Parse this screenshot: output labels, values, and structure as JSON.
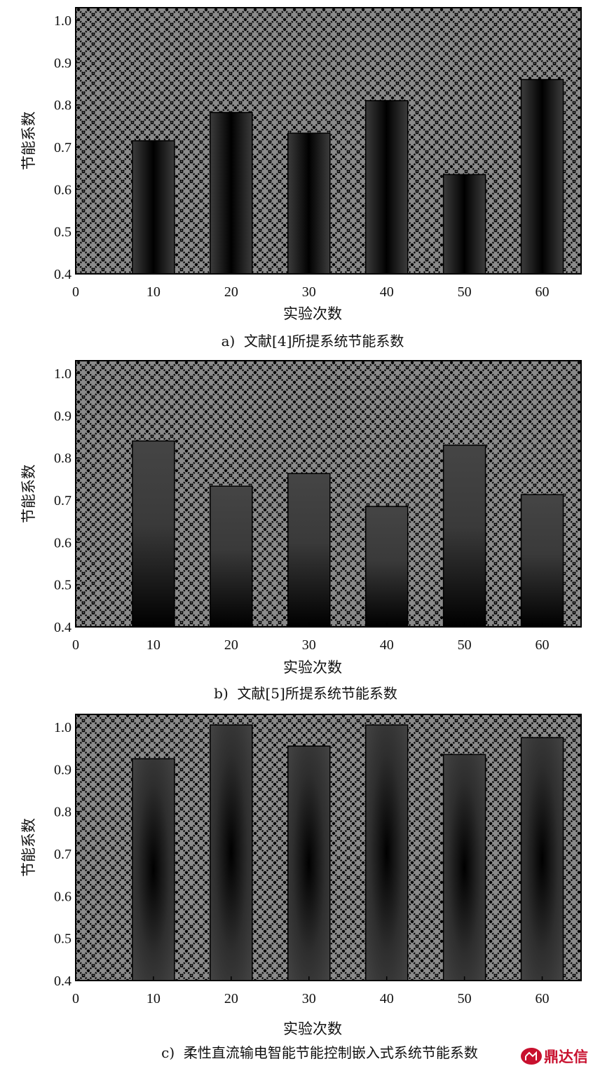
{
  "chart_data": [
    {
      "type": "bar",
      "x": [
        10,
        20,
        30,
        40,
        50,
        60
      ],
      "values": [
        0.715,
        0.782,
        0.733,
        0.81,
        0.635,
        0.86
      ],
      "xticks": [
        0,
        10,
        20,
        30,
        40,
        50,
        60
      ],
      "yticks": [
        "0.4",
        "0.5",
        "0.6",
        "0.7",
        "0.8",
        "0.9",
        "1.0"
      ],
      "xlabel": "实验次数",
      "ylabel": "节能系数",
      "ylim": [
        0.4,
        1.03
      ],
      "xlim": [
        0,
        65
      ],
      "caption": "a)  文献[4]所提系统节能系数",
      "grid": false,
      "background": "crosshatch-pattern",
      "bar_style": "dark-horizontal-gradient"
    },
    {
      "type": "bar",
      "x": [
        10,
        20,
        30,
        40,
        50,
        60
      ],
      "values": [
        0.84,
        0.733,
        0.763,
        0.685,
        0.83,
        0.713
      ],
      "xticks": [
        0,
        10,
        20,
        30,
        40,
        50,
        60
      ],
      "yticks": [
        "0.4",
        "0.5",
        "0.6",
        "0.7",
        "0.8",
        "0.9",
        "1.0"
      ],
      "xlabel": "实验次数",
      "ylabel": "节能系数",
      "ylim": [
        0.4,
        1.03
      ],
      "xlim": [
        0,
        65
      ],
      "caption": "b)  文献[5]所提系统节能系数",
      "grid": false,
      "background": "crosshatch-pattern",
      "bar_style": "dark-vertical-gradient"
    },
    {
      "type": "bar",
      "x": [
        10,
        20,
        30,
        40,
        50,
        60
      ],
      "values": [
        0.925,
        1.005,
        0.955,
        1.005,
        0.935,
        0.975
      ],
      "xticks": [
        0,
        10,
        20,
        30,
        40,
        50,
        60
      ],
      "yticks": [
        "0.4",
        "0.5",
        "0.6",
        "0.7",
        "0.8",
        "0.9",
        "1.0"
      ],
      "xlabel": "实验次数",
      "ylabel": "节能系数",
      "ylim": [
        0.4,
        1.03
      ],
      "xlim": [
        0,
        65
      ],
      "caption": "c)  柔性直流输电智能节能控制嵌入式系统节能系数",
      "grid": false,
      "background": "crosshatch-pattern",
      "bar_style": "radial-gradient"
    }
  ],
  "watermark": {
    "text": "鼎达信",
    "icon": "logo-badge-icon",
    "color": "#c8102e"
  },
  "colors": {
    "background_pattern": "#8a8a8a",
    "pattern_lines": "#000000",
    "bar_edge": "#000000"
  }
}
